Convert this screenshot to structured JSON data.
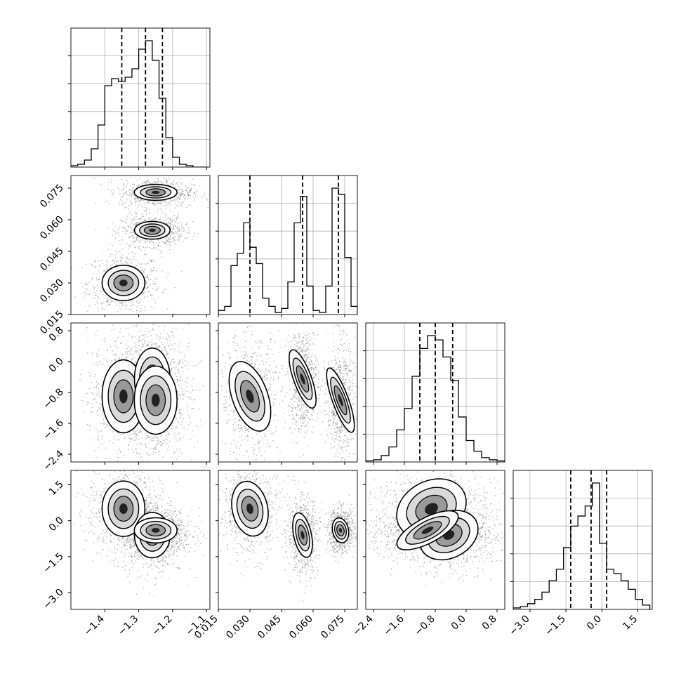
{
  "chart_data": {
    "type": "corner",
    "title": "",
    "grid": true,
    "quantile_lines": "dashed",
    "parameters": [
      {
        "range": [
          -1.5,
          -1.09
        ],
        "ticks": [
          -1.4,
          -1.3,
          -1.2,
          -1.1
        ],
        "tick_labels": [
          "−1.4",
          "−1.3",
          "−1.2",
          "−1.1"
        ],
        "quantiles": [
          -1.35,
          -1.28,
          -1.23
        ],
        "hist": {
          "bin_edges": [
            -1.5,
            -1.48,
            -1.46,
            -1.44,
            -1.42,
            -1.4,
            -1.38,
            -1.36,
            -1.34,
            -1.32,
            -1.3,
            -1.28,
            -1.26,
            -1.24,
            -1.22,
            -1.2,
            -1.18,
            -1.16,
            -1.14,
            -1.12,
            -1.1
          ],
          "counts": [
            0.01,
            0.02,
            0.05,
            0.13,
            0.3,
            0.58,
            0.63,
            0.61,
            0.64,
            0.7,
            0.84,
            0.9,
            0.76,
            0.49,
            0.21,
            0.07,
            0.02,
            0.01,
            0.0,
            0.0
          ]
        },
        "blobs": [
          {
            "mean": -1.345,
            "sd": 0.03
          },
          {
            "mean": -1.26,
            "sd": 0.025
          },
          {
            "mean": -1.25,
            "sd": 0.03
          }
        ]
      },
      {
        "range": [
          0.015,
          0.081
        ],
        "ticks": [
          0.015,
          0.03,
          0.045,
          0.06,
          0.075
        ],
        "tick_labels": [
          "0.015",
          "0.030",
          "0.045",
          "0.060",
          "0.075"
        ],
        "quantiles": [
          0.03,
          0.055,
          0.072
        ],
        "hist": {
          "bin_edges": [
            0.015,
            0.018,
            0.021,
            0.024,
            0.027,
            0.03,
            0.033,
            0.036,
            0.039,
            0.042,
            0.045,
            0.048,
            0.051,
            0.054,
            0.057,
            0.06,
            0.063,
            0.066,
            0.069,
            0.072,
            0.075,
            0.078,
            0.081
          ],
          "counts": [
            0.02,
            0.04,
            0.24,
            0.3,
            0.45,
            0.33,
            0.25,
            0.08,
            0.04,
            0.01,
            0.03,
            0.16,
            0.45,
            0.58,
            0.14,
            0.02,
            0.01,
            0.14,
            0.62,
            0.59,
            0.28,
            0.04
          ]
        },
        "blobs": [
          {
            "mean": 0.03,
            "sd": 0.004
          },
          {
            "mean": 0.055,
            "sd": 0.002
          },
          {
            "mean": 0.073,
            "sd": 0.0018
          }
        ]
      },
      {
        "range": [
          -2.6,
          1.0
        ],
        "ticks": [
          -2.4,
          -1.6,
          -0.8,
          0.0,
          0.8
        ],
        "tick_labels": [
          "−2.4",
          "−1.6",
          "−0.8",
          "0.0",
          "0.8"
        ],
        "quantiles": [
          -1.2,
          -0.8,
          -0.35
        ],
        "hist": {
          "bin_edges": [
            -2.6,
            -2.4,
            -2.2,
            -2.0,
            -1.8,
            -1.6,
            -1.4,
            -1.2,
            -1.0,
            -0.8,
            -0.6,
            -0.4,
            -0.2,
            0.0,
            0.2,
            0.4,
            0.6,
            0.8,
            1.0
          ],
          "counts": [
            0.005,
            0.01,
            0.03,
            0.07,
            0.15,
            0.25,
            0.4,
            0.53,
            0.59,
            0.57,
            0.49,
            0.38,
            0.21,
            0.1,
            0.05,
            0.02,
            0.01,
            0.005
          ]
        },
        "blobs": [
          {
            "mean": -0.9,
            "sd": 0.45
          },
          {
            "mean": -0.45,
            "sd": 0.38
          },
          {
            "mean": -1.0,
            "sd": 0.42
          }
        ]
      },
      {
        "range": [
          -3.7,
          2.1
        ],
        "ticks": [
          -3.0,
          -1.5,
          0.0,
          1.5
        ],
        "tick_labels": [
          "−3.0",
          "−1.5",
          "0.0",
          "1.5"
        ],
        "quantiles": [
          -1.3,
          -0.45,
          0.2
        ],
        "hist": {
          "bin_edges": [
            -3.7,
            -3.4,
            -3.1,
            -2.8,
            -2.5,
            -2.2,
            -1.9,
            -1.6,
            -1.3,
            -1.0,
            -0.7,
            -0.4,
            -0.1,
            0.2,
            0.5,
            0.8,
            1.1,
            1.4,
            1.7,
            2.0
          ],
          "counts": [
            0.01,
            0.02,
            0.04,
            0.07,
            0.12,
            0.2,
            0.28,
            0.43,
            0.58,
            0.65,
            0.72,
            0.88,
            0.46,
            0.28,
            0.25,
            0.2,
            0.14,
            0.07,
            0.03
          ]
        },
        "blobs": [
          {
            "mean": 0.5,
            "sd": 0.55
          },
          {
            "mean": -0.6,
            "sd": 0.45
          },
          {
            "mean": -0.4,
            "sd": 0.25
          }
        ]
      }
    ]
  }
}
